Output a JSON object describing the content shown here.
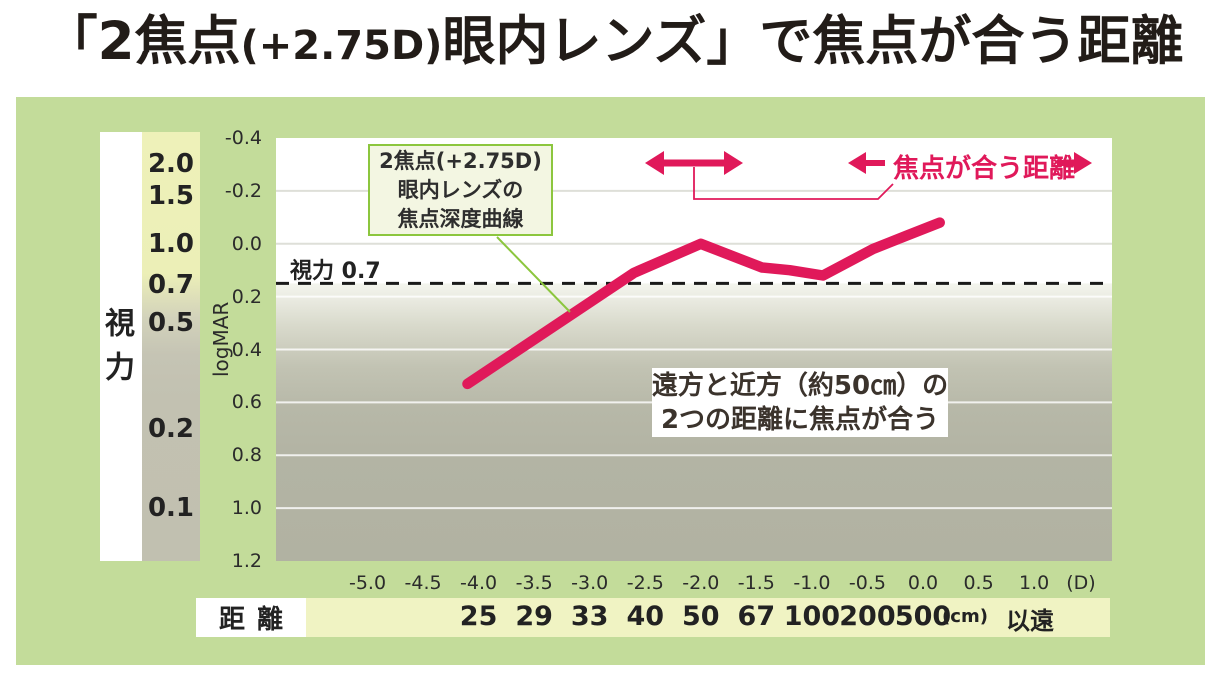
{
  "title": {
    "part1": "「2焦点",
    "part2": "(+2.75D)",
    "part3": "眼内レンズ」で焦点が合う距離"
  },
  "colors": {
    "panel_green": "#c3dc9a",
    "curve_pink": "#e0195a",
    "box_border_green": "#8cc63e",
    "box_bg_green": "#f3f6e2",
    "distance_band_yellow": "#f0f3c3",
    "acuity_strip_yellow": "#eef1b9",
    "plot_gray": "#b3b4a4"
  },
  "acuity_scale": {
    "title": "視力",
    "items": [
      {
        "label": "2.0",
        "logmar": -0.3
      },
      {
        "label": "1.5",
        "logmar": -0.18
      },
      {
        "label": "1.0",
        "logmar": 0.0
      },
      {
        "label": "0.7",
        "logmar": 0.155
      },
      {
        "label": "0.5",
        "logmar": 0.3
      },
      {
        "label": "0.2",
        "logmar": 0.7
      },
      {
        "label": "0.1",
        "logmar": 1.0
      }
    ]
  },
  "chart": {
    "y_axis_label": "logMAR",
    "y_ticks": [
      "-0.4",
      "-0.2",
      "0.0",
      "0.2",
      "0.4",
      "0.6",
      "0.8",
      "1.0",
      "1.2"
    ],
    "x_ticks": [
      "-5.0",
      "-4.5",
      "-4.0",
      "-3.5",
      "-3.0",
      "-2.5",
      "-2.0",
      "-1.5",
      "-1.0",
      "-0.5",
      "0.0",
      "0.5",
      "1.0"
    ],
    "x_unit": "(D)",
    "threshold_label": "視力 0.7"
  },
  "chart_data": {
    "type": "line",
    "title": "「2焦点(+2.75D)眼内レンズ」で焦点が合う距離",
    "xlabel": "(D)",
    "ylabel": "logMAR",
    "xlim": [
      -5.85,
      1.7
    ],
    "ylim": [
      -0.4,
      1.2
    ],
    "y_axis_inverted_quality": "lower logMAR = better acuity; y increases downward",
    "grid": "horizontal every 0.2",
    "series": [
      {
        "name": "2焦点(+2.75D)眼内レンズの焦点深度曲線",
        "color": "#e0195a",
        "x_diopter": [
          -4.1,
          -2.6,
          -2.0,
          -1.45,
          -1.2,
          -0.9,
          -0.45,
          -0.15,
          0.15
        ],
        "y_logmar": [
          0.53,
          0.11,
          0.0,
          0.09,
          0.1,
          0.12,
          0.02,
          -0.03,
          -0.08
        ]
      }
    ],
    "threshold_line": {
      "label": "視力 0.7",
      "logmar": 0.15,
      "style": "black dashed"
    },
    "x_tick_values": [
      -5.0,
      -4.5,
      -4.0,
      -3.5,
      -3.0,
      -2.5,
      -2.0,
      -1.5,
      -1.0,
      -0.5,
      0.0,
      0.5,
      1.0
    ],
    "y_tick_values": [
      -0.4,
      -0.2,
      0.0,
      0.2,
      0.4,
      0.6,
      0.8,
      1.0,
      1.2
    ],
    "focus_ranges_marked": [
      {
        "center_diopter": -2.05,
        "span_diopter": [
          -2.5,
          -1.6
        ],
        "meaning": "near focus ~50cm"
      },
      {
        "center_diopter": 0.2,
        "meaning": "far focus 500cm and beyond"
      }
    ]
  },
  "annotations": {
    "curve_label": {
      "line1": "2焦点(+2.75D)",
      "line2": "眼内レンズの",
      "line3": "焦点深度曲線"
    },
    "focus_label": "焦点が合う距離",
    "center_note": {
      "line1": "遠方と近方（約50㎝）の",
      "line2": "2つの距離に焦点が合う"
    }
  },
  "distance_row": {
    "label": "距離",
    "values": [
      "25",
      "29",
      "33",
      "40",
      "50",
      "67",
      "100",
      "200",
      "500"
    ],
    "unit": "(cm)",
    "beyond": "以遠"
  }
}
